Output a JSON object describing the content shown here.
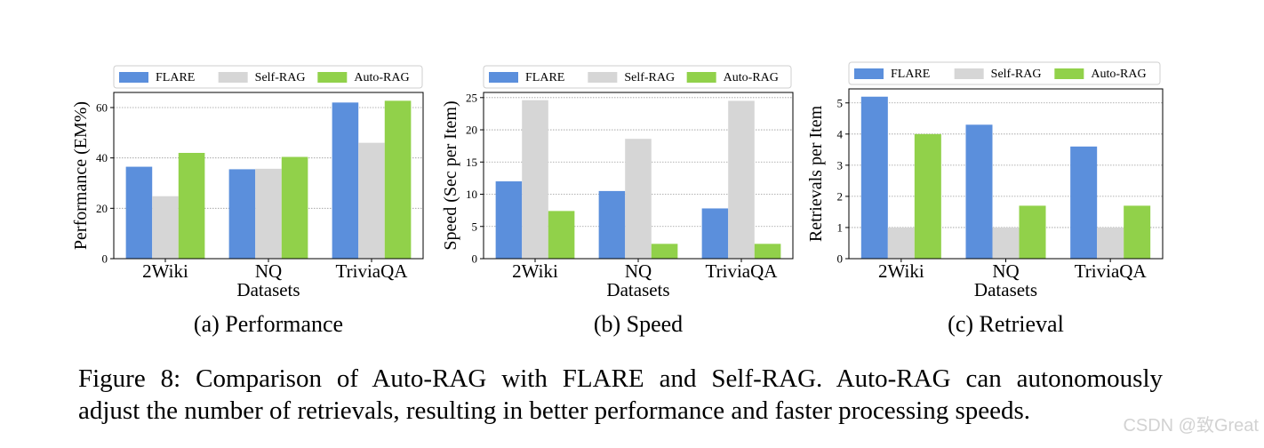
{
  "figure": {
    "caption": {
      "line1": "Figure 8: Comparison of Auto-RAG with FLARE and Self-RAG. Auto-RAG can autonomously",
      "line2": "adjust the number of retrievals, resulting in better performance and faster processing speeds."
    },
    "watermark": "CSDN @致Great"
  },
  "colors": {
    "FLARE": "#5b8fdc",
    "Self-RAG": "#d6d6d6",
    "Auto-RAG": "#91d14a"
  },
  "chart_data": [
    {
      "type": "bar",
      "subtitle": "(a) Performance",
      "xlabel": "Datasets",
      "ylabel": "Performance (EM%)",
      "categories": [
        "2Wiki",
        "NQ",
        "TriviaQA"
      ],
      "series": [
        {
          "name": "FLARE",
          "values": [
            36.5,
            35.5,
            62
          ]
        },
        {
          "name": "Self-RAG",
          "values": [
            24.8,
            35.7,
            46
          ]
        },
        {
          "name": "Auto-RAG",
          "values": [
            42,
            40.4,
            62.7
          ]
        }
      ],
      "ylim": [
        0,
        66
      ],
      "yticks": [
        0,
        20,
        40,
        60
      ],
      "grid": true,
      "legend": "top"
    },
    {
      "type": "bar",
      "subtitle": "(b) Speed",
      "xlabel": "Datasets",
      "ylabel": "Speed (Sec per Item)",
      "categories": [
        "2Wiki",
        "NQ",
        "TriviaQA"
      ],
      "series": [
        {
          "name": "FLARE",
          "values": [
            12,
            10.5,
            7.8
          ]
        },
        {
          "name": "Self-RAG",
          "values": [
            24.6,
            18.6,
            24.5
          ]
        },
        {
          "name": "Auto-RAG",
          "values": [
            7.4,
            2.3,
            2.3
          ]
        }
      ],
      "ylim": [
        0,
        25.8
      ],
      "yticks": [
        0,
        5,
        10,
        15,
        20,
        25
      ],
      "grid": true,
      "legend": "top"
    },
    {
      "type": "bar",
      "subtitle": "(c) Retrieval",
      "xlabel": "Datasets",
      "ylabel": "Retrievals per Item",
      "categories": [
        "2Wiki",
        "NQ",
        "TriviaQA"
      ],
      "series": [
        {
          "name": "FLARE",
          "values": [
            5.2,
            4.3,
            3.6
          ]
        },
        {
          "name": "Self-RAG",
          "values": [
            1,
            1,
            1
          ]
        },
        {
          "name": "Auto-RAG",
          "values": [
            4,
            1.7,
            1.7
          ]
        }
      ],
      "ylim": [
        0,
        5.45
      ],
      "yticks": [
        0,
        1,
        2,
        3,
        4,
        5
      ],
      "grid": true,
      "legend": "top"
    }
  ]
}
